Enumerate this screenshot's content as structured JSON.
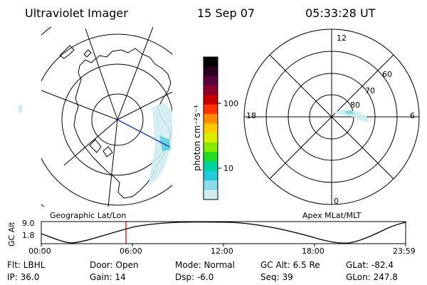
{
  "header": {
    "instrument": "Ultraviolet Imager",
    "date": "15 Sep 07",
    "time": "05:33:28 UT"
  },
  "colorbar": {
    "unit_label": "photon cm⁻²s⁻¹",
    "ticks": [
      "100",
      "10"
    ],
    "scale": "log",
    "colors": [
      "#000000",
      "#2b0024",
      "#5a003c",
      "#8a0028",
      "#c80000",
      "#ff3300",
      "#ff8a00",
      "#ffcc00",
      "#d8f000",
      "#88e800",
      "#22dd22",
      "#00d4a0",
      "#22ccdd",
      "#88dde8",
      "#d0eef2"
    ]
  },
  "left_panel": {
    "label": "Geographic Lat/Lon"
  },
  "right_panel": {
    "label": "Apex MLat/MLT",
    "mlt_labels": {
      "top": "12",
      "left": "18",
      "right": "6",
      "bottom": "0"
    },
    "lat_labels": [
      "60",
      "70",
      "80"
    ]
  },
  "timeline": {
    "ylabel": "GC Alt",
    "y_ticks": [
      "9.0",
      "1.8"
    ],
    "x_ticks": [
      "00:00",
      "06:00",
      "12:00",
      "18:00",
      "23:59"
    ],
    "current_marker_color": "#cc0000"
  },
  "info": {
    "filter": "Flt: LBHL",
    "ip": "IP: 36.0",
    "door": "Door: Open",
    "gain": "Gain: 14",
    "mode": "Mode: Normal",
    "dsp": "Dsp:    -6.0",
    "gc_alt": "GC Alt: 6.5 Re",
    "seq": "Seq: 39",
    "glat": "GLat: -82.4",
    "glon": "GLon: 247.8"
  }
}
